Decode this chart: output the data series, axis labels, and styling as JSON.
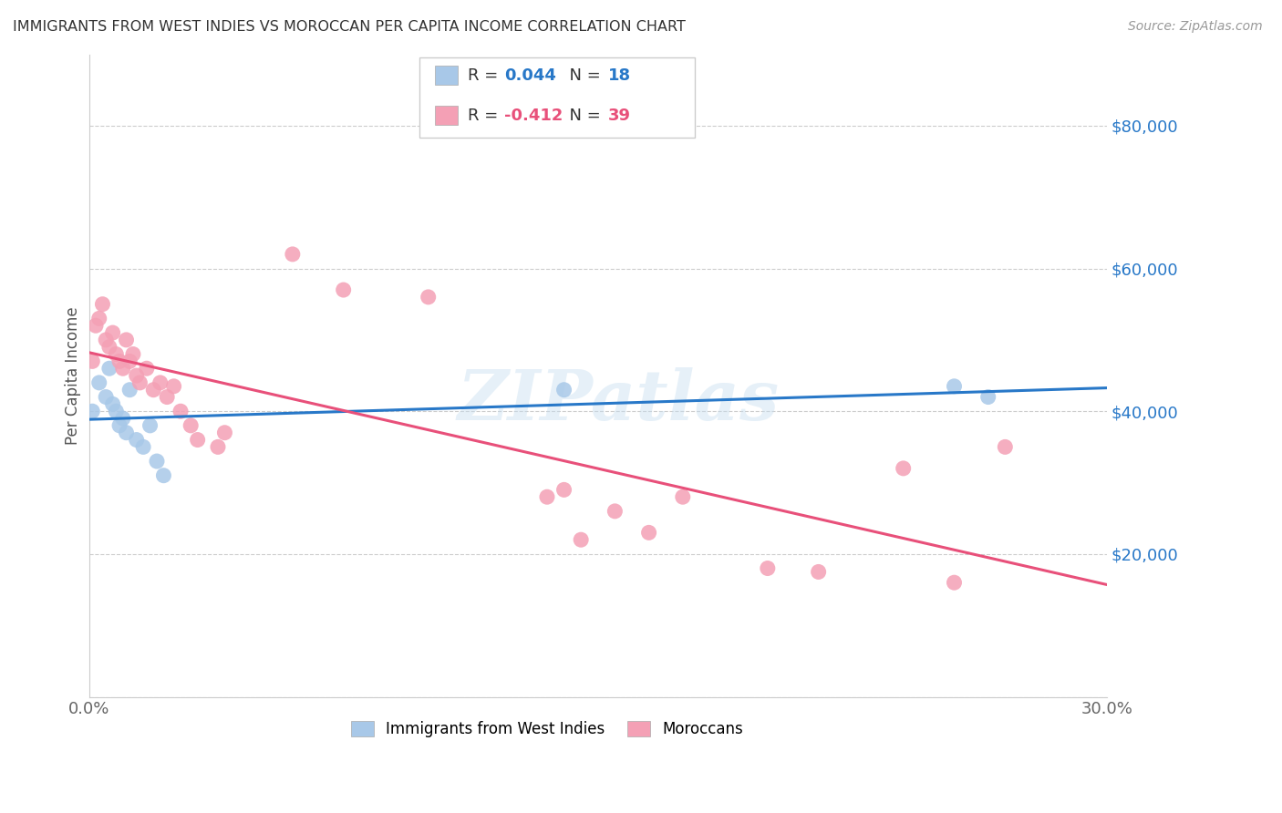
{
  "title": "IMMIGRANTS FROM WEST INDIES VS MOROCCAN PER CAPITA INCOME CORRELATION CHART",
  "source": "Source: ZipAtlas.com",
  "ylabel": "Per Capita Income",
  "xlim": [
    0.0,
    0.3
  ],
  "ylim": [
    0,
    90000
  ],
  "yticks": [
    0,
    20000,
    40000,
    60000,
    80000
  ],
  "ytick_labels": [
    "",
    "$20,000",
    "$40,000",
    "$60,000",
    "$80,000"
  ],
  "xticks": [
    0.0,
    0.05,
    0.1,
    0.15,
    0.2,
    0.25,
    0.3
  ],
  "xtick_labels": [
    "0.0%",
    "",
    "",
    "",
    "",
    "",
    "30.0%"
  ],
  "background_color": "#ffffff",
  "grid_color": "#cccccc",
  "color_blue": "#a8c8e8",
  "color_pink": "#f4a0b5",
  "line_blue": "#2878c8",
  "line_pink": "#e8507a",
  "label_blue": "Immigrants from West Indies",
  "label_pink": "Moroccans",
  "watermark": "ZIPatlas",
  "legend_R1": "0.044",
  "legend_N1": "18",
  "legend_R2": "-0.412",
  "legend_N2": "39",
  "blue_x": [
    0.001,
    0.003,
    0.005,
    0.006,
    0.007,
    0.008,
    0.009,
    0.01,
    0.011,
    0.012,
    0.014,
    0.016,
    0.018,
    0.02,
    0.022,
    0.14,
    0.255,
    0.265
  ],
  "blue_y": [
    40000,
    44000,
    42000,
    46000,
    41000,
    40000,
    38000,
    39000,
    37000,
    43000,
    36000,
    35000,
    38000,
    33000,
    31000,
    43000,
    43500,
    42000
  ],
  "pink_x": [
    0.001,
    0.002,
    0.003,
    0.004,
    0.005,
    0.006,
    0.007,
    0.008,
    0.009,
    0.01,
    0.011,
    0.012,
    0.013,
    0.014,
    0.015,
    0.017,
    0.019,
    0.021,
    0.023,
    0.025,
    0.027,
    0.03,
    0.032,
    0.038,
    0.04,
    0.06,
    0.075,
    0.1,
    0.135,
    0.14,
    0.145,
    0.155,
    0.165,
    0.175,
    0.2,
    0.215,
    0.24,
    0.255,
    0.27
  ],
  "pink_y": [
    47000,
    52000,
    53000,
    55000,
    50000,
    49000,
    51000,
    48000,
    47000,
    46000,
    50000,
    47000,
    48000,
    45000,
    44000,
    46000,
    43000,
    44000,
    42000,
    43500,
    40000,
    38000,
    36000,
    35000,
    37000,
    62000,
    57000,
    56000,
    28000,
    29000,
    22000,
    26000,
    23000,
    28000,
    18000,
    17500,
    32000,
    16000,
    35000
  ]
}
